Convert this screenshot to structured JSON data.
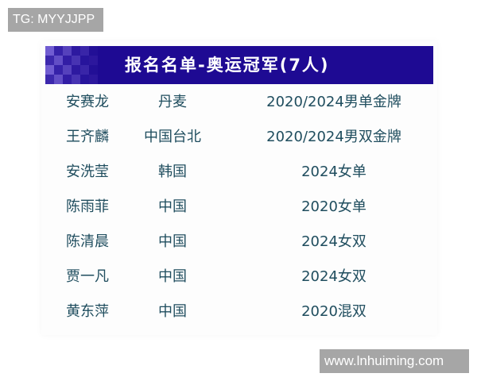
{
  "watermark_top": "TG: MYYJJPP",
  "watermark_bottom": "www.lnhuiming.com",
  "colors": {
    "banner": "#1e0a93",
    "text": "#1f4d5e"
  },
  "banner_title": "报名名单-奥运冠军(7人)",
  "rows": [
    {
      "name": "安赛龙",
      "region": "丹麦",
      "medal": "2020/2024男单金牌"
    },
    {
      "name": "王齐麟",
      "region": "中国台北",
      "medal": "2020/2024男双金牌"
    },
    {
      "name": "安洗莹",
      "region": "韩国",
      "medal": "2024女单"
    },
    {
      "name": "陈雨菲",
      "region": "中国",
      "medal": "2020女单"
    },
    {
      "name": "陈清晨",
      "region": "中国",
      "medal": "2024女双"
    },
    {
      "name": "贾一凡",
      "region": "中国",
      "medal": "2024女双"
    },
    {
      "name": "黄东萍",
      "region": "中国",
      "medal": "2020混双"
    }
  ]
}
